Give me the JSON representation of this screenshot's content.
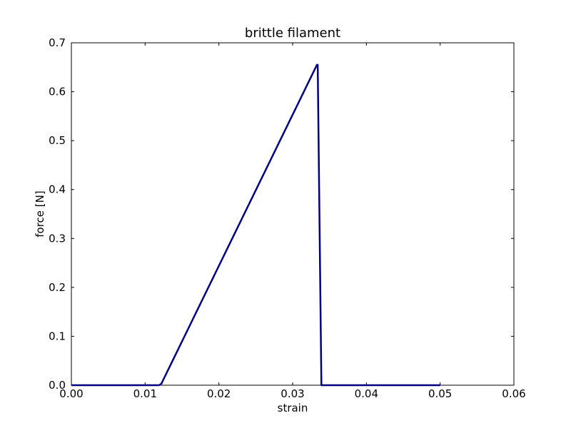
{
  "chart_data": {
    "type": "line",
    "title": "brittle filament",
    "xlabel": "strain",
    "ylabel": "force [N]",
    "xlim": [
      0.0,
      0.06
    ],
    "ylim": [
      0.0,
      0.7
    ],
    "x_ticks": [
      0.0,
      0.01,
      0.02,
      0.03,
      0.04,
      0.05,
      0.06
    ],
    "x_tick_labels": [
      "0.00",
      "0.01",
      "0.02",
      "0.03",
      "0.04",
      "0.05",
      "0.06"
    ],
    "y_ticks": [
      0.0,
      0.1,
      0.2,
      0.3,
      0.4,
      0.5,
      0.6,
      0.7
    ],
    "y_tick_labels": [
      "0.0",
      "0.1",
      "0.2",
      "0.3",
      "0.4",
      "0.5",
      "0.6",
      "0.7"
    ],
    "grid": false,
    "series": [
      {
        "color": "#000080",
        "x": [
          0.0,
          0.0119,
          0.0122,
          0.0333,
          0.0334,
          0.0339,
          0.05
        ],
        "y": [
          0.0,
          0.0,
          0.003,
          0.655,
          0.655,
          0.0,
          0.0
        ]
      }
    ]
  }
}
